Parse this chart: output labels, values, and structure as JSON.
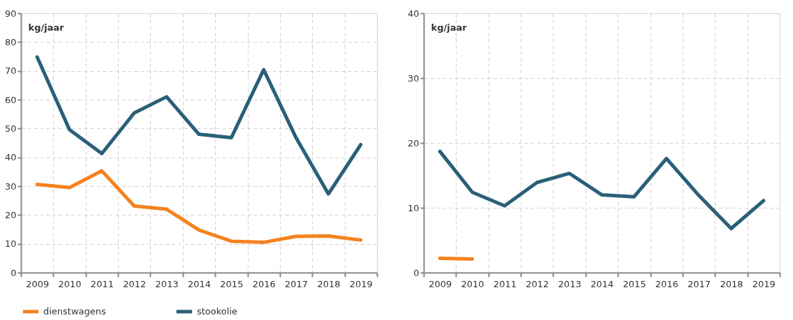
{
  "chart_data": [
    {
      "type": "line",
      "ylabel": "kg/jaar",
      "categories": [
        "2009",
        "2010",
        "2011",
        "2012",
        "2013",
        "2014",
        "2015",
        "2016",
        "2017",
        "2018",
        "2019"
      ],
      "series": [
        {
          "name": "dienstwagens",
          "color": "#f5821f",
          "values": [
            30.6,
            29.5,
            35.3,
            23.1,
            22.0,
            14.8,
            10.9,
            10.5,
            12.6,
            12.7,
            11.3
          ]
        },
        {
          "name": "stookolie",
          "color": "#2a5f78",
          "values": [
            74.8,
            49.6,
            41.3,
            55.4,
            61.0,
            48.0,
            46.8,
            70.4,
            46.8,
            27.3,
            44.4
          ]
        }
      ],
      "ylim": [
        0,
        90
      ],
      "yticks": [
        0,
        10,
        20,
        30,
        40,
        50,
        60,
        70,
        80,
        90
      ],
      "grid": true,
      "legend": "bottom",
      "marker": "none",
      "line_style": "solid"
    },
    {
      "type": "line",
      "ylabel": "kg/jaar",
      "categories": [
        "2009",
        "2010",
        "2011",
        "2012",
        "2013",
        "2014",
        "2015",
        "2016",
        "2017",
        "2018",
        "2019"
      ],
      "series": [
        {
          "name": "dienstwagens",
          "color": "#f5821f",
          "values": [
            2.2,
            2.1,
            null,
            null,
            null,
            null,
            null,
            null,
            null,
            null,
            null
          ]
        },
        {
          "name": "stookolie",
          "color": "#2a5f78",
          "values": [
            18.7,
            12.4,
            10.3,
            13.9,
            15.3,
            12.0,
            11.7,
            17.6,
            11.9,
            6.8,
            11.1
          ]
        }
      ],
      "ylim": [
        0,
        40
      ],
      "yticks": [
        0,
        10,
        20,
        30,
        40
      ],
      "grid": true,
      "legend": "bottom",
      "marker": "none",
      "line_style": "solid"
    }
  ]
}
